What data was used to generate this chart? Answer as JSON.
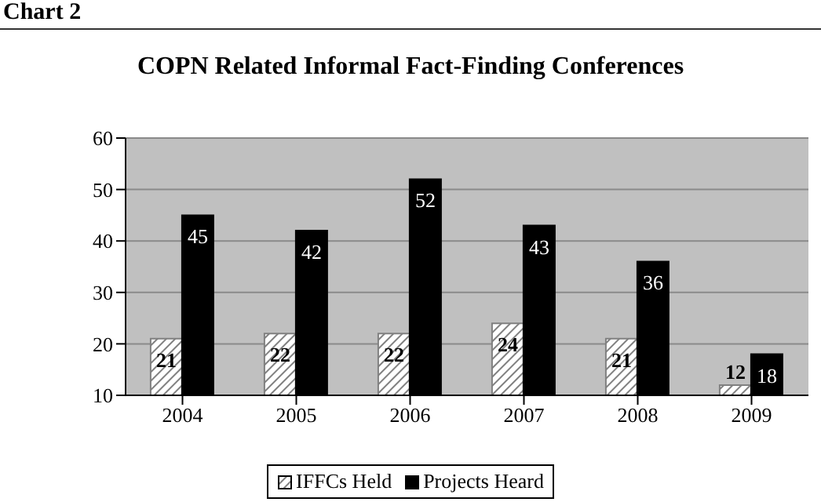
{
  "chart_data": {
    "type": "bar",
    "title": "COPN Related Informal Fact-Finding Conferences",
    "annotations": [
      "Chart 2"
    ],
    "categories": [
      "2004",
      "2005",
      "2006",
      "2007",
      "2008",
      "2009"
    ],
    "series": [
      {
        "name": "IFFCs Held",
        "color": "#808080",
        "values": [
          21,
          22,
          22,
          24,
          21,
          12
        ]
      },
      {
        "name": "Projects Heard",
        "color": "#000000",
        "values": [
          45,
          42,
          52,
          43,
          36,
          18
        ]
      }
    ],
    "ylim": [
      10,
      60
    ],
    "yticks": [
      10,
      20,
      30,
      40,
      50,
      60
    ],
    "grid": "y",
    "legend": "bottom",
    "data_labels": true
  }
}
